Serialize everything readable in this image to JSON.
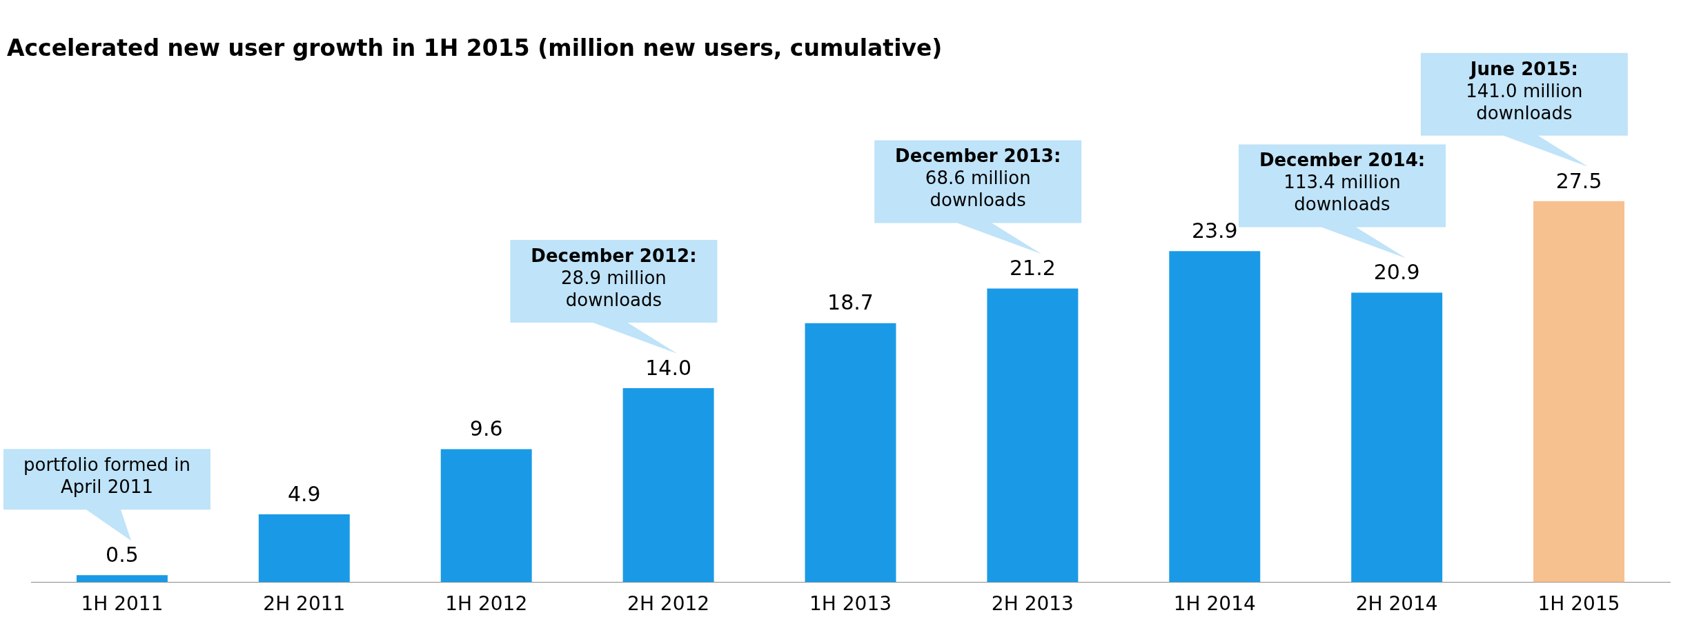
{
  "chart_data": {
    "type": "bar",
    "title": "Accelerated new user growth in 1H 2015 (million new users, cumulative)",
    "categories": [
      "1H 2011",
      "2H 2011",
      "1H 2012",
      "2H 2012",
      "1H 2013",
      "2H 2013",
      "1H 2014",
      "2H 2014",
      "1H 2015"
    ],
    "values": [
      0.5,
      4.9,
      9.6,
      14.0,
      18.7,
      21.2,
      23.9,
      20.9,
      27.5
    ],
    "colors": [
      "#1a9ae6",
      "#1a9ae6",
      "#1a9ae6",
      "#1a9ae6",
      "#1a9ae6",
      "#1a9ae6",
      "#1a9ae6",
      "#1a9ae6",
      "#f7c08f"
    ],
    "value_labels": [
      "0.5",
      "4.9",
      "9.6",
      "14.0",
      "18.7",
      "21.2",
      "23.9",
      "20.9",
      "27.5"
    ],
    "grid": false,
    "legend": false,
    "annotations": [
      "portfolio formed in April 2011",
      "December 2012: 28.9 million downloads",
      "December 2013: 68.6 million downloads",
      "December 2014: 113.4 million downloads",
      "June 2015: 141.0 million downloads"
    ]
  }
}
